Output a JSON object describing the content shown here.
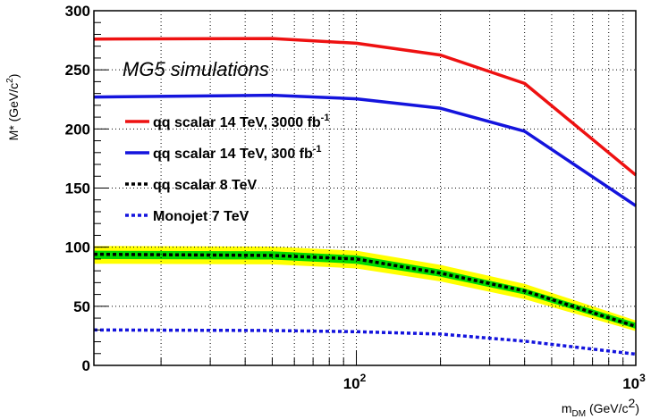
{
  "chart_data": {
    "type": "line",
    "xscale": "log",
    "xlim": [
      11.5,
      1000
    ],
    "ylim": [
      0,
      300
    ],
    "grid": true,
    "legend_title": "MG5 simulations",
    "ylabel": {
      "main": "M",
      "star": "*",
      "unit_open": " (GeV/c",
      "unit_sup": "2",
      "unit_close": ")"
    },
    "xlabel": {
      "main": "m",
      "sub": "DM",
      "unit_open": " (GeV/c",
      "unit_sup": "2",
      "unit_close": ")"
    },
    "y_ticks": [
      0,
      50,
      100,
      150,
      200,
      250,
      300
    ],
    "x_tick_labels": [
      {
        "value": 100,
        "base": "10",
        "exp": "2"
      },
      {
        "value": 1000,
        "base": "10",
        "exp": "3"
      }
    ],
    "series": [
      {
        "key": "s3000",
        "name": "qq scalar 14 TeV, 3000 fb",
        "name_sup": "-1",
        "color": "#ee1111",
        "style": "solid",
        "x": [
          11.5,
          50,
          100,
          200,
          400,
          1000
        ],
        "y": [
          276,
          276.5,
          272.5,
          262.5,
          238.5,
          161
        ]
      },
      {
        "key": "s300",
        "name": "qq scalar 14 TeV,  300 fb",
        "name_sup": "-1",
        "color": "#1414dd",
        "style": "solid",
        "x": [
          11.5,
          50,
          100,
          200,
          400,
          1000
        ],
        "y": [
          227,
          228.5,
          225.5,
          217.5,
          198,
          135
        ]
      },
      {
        "key": "s8",
        "name": "qq scalar 8 TeV",
        "name_sup": "",
        "color": "#000000",
        "style": "dotted",
        "band_outer": {
          "color": "#ffff00",
          "upper": [
            101,
            100.5,
            97,
            85,
            69,
            38
          ],
          "lower": [
            86,
            85.5,
            82,
            71,
            56,
            29
          ]
        },
        "band_inner": {
          "color": "#00dd00",
          "upper": [
            97,
            96.5,
            93,
            81,
            65,
            36
          ],
          "lower": [
            90,
            89.5,
            86,
            75,
            60,
            31
          ]
        },
        "x": [
          11.5,
          50,
          100,
          200,
          400,
          1000
        ],
        "y": [
          94,
          93,
          90,
          78,
          63,
          33
        ]
      },
      {
        "key": "mono",
        "name": "Monojet 7 TeV",
        "name_sup": "",
        "color": "#1414dd",
        "style": "dotted",
        "x": [
          11.5,
          50,
          100,
          200,
          400,
          1000
        ],
        "y": [
          30,
          29.5,
          28.5,
          26.5,
          20.5,
          9.5
        ]
      }
    ]
  }
}
